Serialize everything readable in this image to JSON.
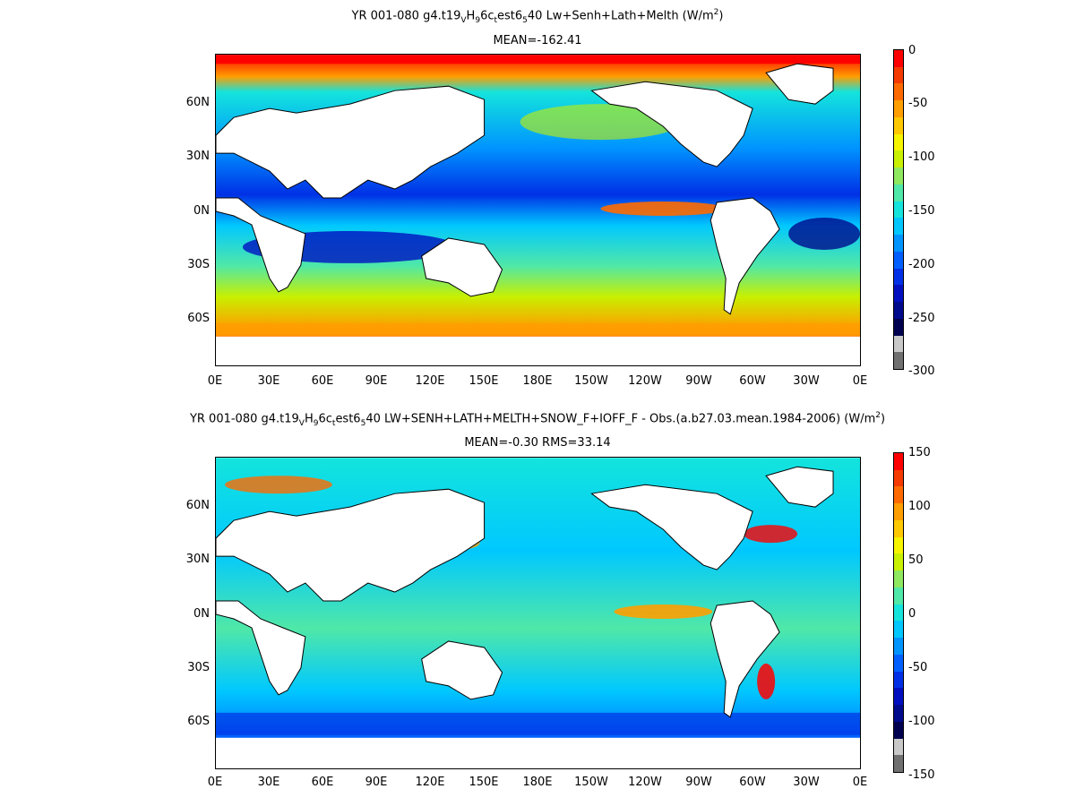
{
  "panels": [
    {
      "title_main": "YR 001-080 g4.t19",
      "title_sub1": "V",
      "title_mid1": "H",
      "title_sub2": "9",
      "title_mid2": "6c",
      "title_sub3": "t",
      "title_mid3": "est6",
      "title_sub4": "5",
      "title_tail": "40 Lw+Senh+Lath+Melth (W/m",
      "title_sup": "2",
      "title_end": ")",
      "mean": "MEAN=-162.41",
      "colorbar_ticks": [
        "0",
        "-50",
        "-100",
        "-150",
        "-200",
        "-250",
        "-300"
      ],
      "colorbar_colors": [
        "#ff0000",
        "#f53a00",
        "#ff6a00",
        "#ff9e00",
        "#ffc800",
        "#f7f400",
        "#c8f000",
        "#8ee860",
        "#50e8a8",
        "#14e4dc",
        "#00c8ff",
        "#0094ff",
        "#0060ff",
        "#0030e6",
        "#0010c0",
        "#000a8c",
        "#000050",
        "#c8c8c8",
        "#707070"
      ]
    },
    {
      "title_main": "YR 001-080 g4.t19",
      "title_sub1": "V",
      "title_mid1": "H",
      "title_sub2": "9",
      "title_mid2": "6c",
      "title_sub3": "t",
      "title_mid3": "est6",
      "title_sub4": "5",
      "title_tail": "40 LW+SENH+LATH+MELTH+SNOW_F+IOFF_F - Obs.(a.b27.03.mean.1984-2006) (W/m",
      "title_sup": "2",
      "title_end": ")",
      "mean": "MEAN=-0.30 RMS=33.14",
      "colorbar_ticks": [
        "150",
        "100",
        "50",
        "0",
        "-50",
        "-100",
        "-150"
      ],
      "colorbar_colors": [
        "#ff0000",
        "#f53a00",
        "#ff6a00",
        "#ff9e00",
        "#ffc800",
        "#f7f400",
        "#c8f000",
        "#8ee860",
        "#50e8a8",
        "#14e4dc",
        "#00c8ff",
        "#0094ff",
        "#0060ff",
        "#0030e6",
        "#0010c0",
        "#000a8c",
        "#000050",
        "#c8c8c8",
        "#707070"
      ]
    }
  ],
  "lat_labels": [
    "60N",
    "30N",
    "0N",
    "30S",
    "60S"
  ],
  "lon_labels": [
    "0E",
    "30E",
    "60E",
    "90E",
    "120E",
    "150E",
    "180E",
    "150W",
    "120W",
    "90W",
    "60W",
    "30W",
    "0E"
  ]
}
